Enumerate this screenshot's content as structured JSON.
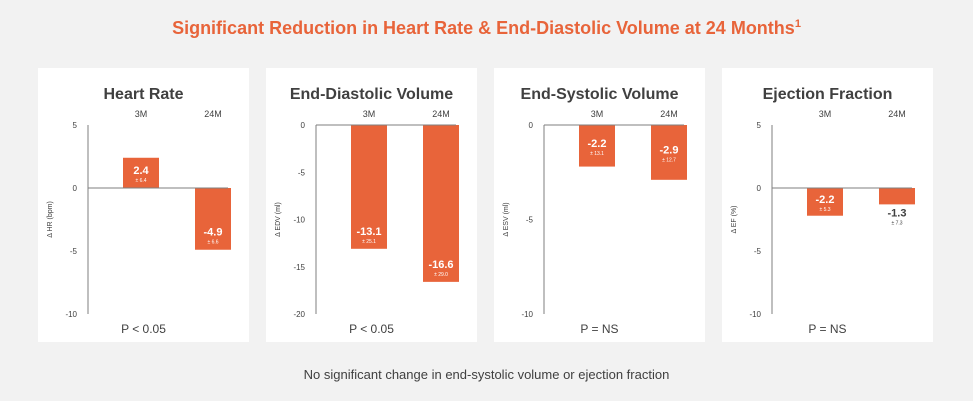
{
  "title": "Significant Reduction in Heart Rate & End-Diastolic Volume at 24 Months",
  "title_superscript": "1",
  "footnote": "No significant change in end-systolic volume or ejection fraction",
  "colors": {
    "bar": "#e8643a",
    "title": "#e8643a",
    "text": "#404040",
    "axis": "#7f7f7f",
    "background": "#f2f2f2",
    "panel": "#ffffff"
  },
  "chart_data": [
    {
      "type": "bar",
      "title": "Heart Rate",
      "categories": [
        "3M",
        "24M"
      ],
      "values": [
        2.4,
        -4.9
      ],
      "value_labels": [
        "2.4",
        "-4.9"
      ],
      "sd_labels": [
        "± 6.4",
        "± 6.6"
      ],
      "ylabel": "Δ HR (bpm)",
      "ylim": [
        -10,
        5
      ],
      "yticks": [
        5,
        0,
        -5,
        -10
      ],
      "p_value": "P < 0.05"
    },
    {
      "type": "bar",
      "title": "End-Diastolic Volume",
      "categories": [
        "3M",
        "24M"
      ],
      "values": [
        -13.1,
        -16.6
      ],
      "value_labels": [
        "-13.1",
        "-16.6"
      ],
      "sd_labels": [
        "± 25.1",
        "± 29.0"
      ],
      "ylabel": "Δ EDV (ml)",
      "ylim": [
        -20,
        0
      ],
      "yticks": [
        0,
        -5,
        -10,
        -15,
        -20
      ],
      "p_value": "P < 0.05"
    },
    {
      "type": "bar",
      "title": "End-Systolic Volume",
      "categories": [
        "3M",
        "24M"
      ],
      "values": [
        -2.2,
        -2.9
      ],
      "value_labels": [
        "-2.2",
        "-2.9"
      ],
      "sd_labels": [
        "± 13.1",
        "± 12.7"
      ],
      "ylabel": "Δ ESV (ml)",
      "ylim": [
        -10,
        0
      ],
      "yticks": [
        0,
        -5,
        -10
      ],
      "p_value": "P = NS"
    },
    {
      "type": "bar",
      "title": "Ejection Fraction",
      "categories": [
        "3M",
        "24M"
      ],
      "values": [
        -2.2,
        -1.3
      ],
      "value_labels": [
        "-2.2",
        "-1.3"
      ],
      "sd_labels": [
        "± 5.3",
        "± 7.3"
      ],
      "ylabel": "Δ EF (%)",
      "ylim": [
        -10,
        5
      ],
      "yticks": [
        5,
        0,
        -5,
        -10
      ],
      "p_value": "P = NS"
    }
  ]
}
